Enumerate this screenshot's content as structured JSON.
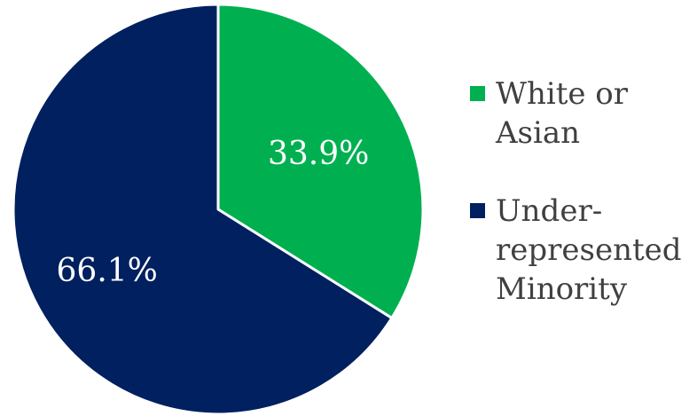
{
  "chart_data": {
    "type": "pie",
    "title": "",
    "legend_position": "right",
    "slices": [
      {
        "name": "White or Asian",
        "legend_label": "White or\nAsian",
        "value": 33.9,
        "label": "33.9%",
        "color": "#00b050"
      },
      {
        "name": "Under-represented Minority",
        "legend_label": "Under-\nrepresented\nMinority",
        "value": 66.1,
        "label": "66.1%",
        "color": "#002060"
      }
    ]
  }
}
